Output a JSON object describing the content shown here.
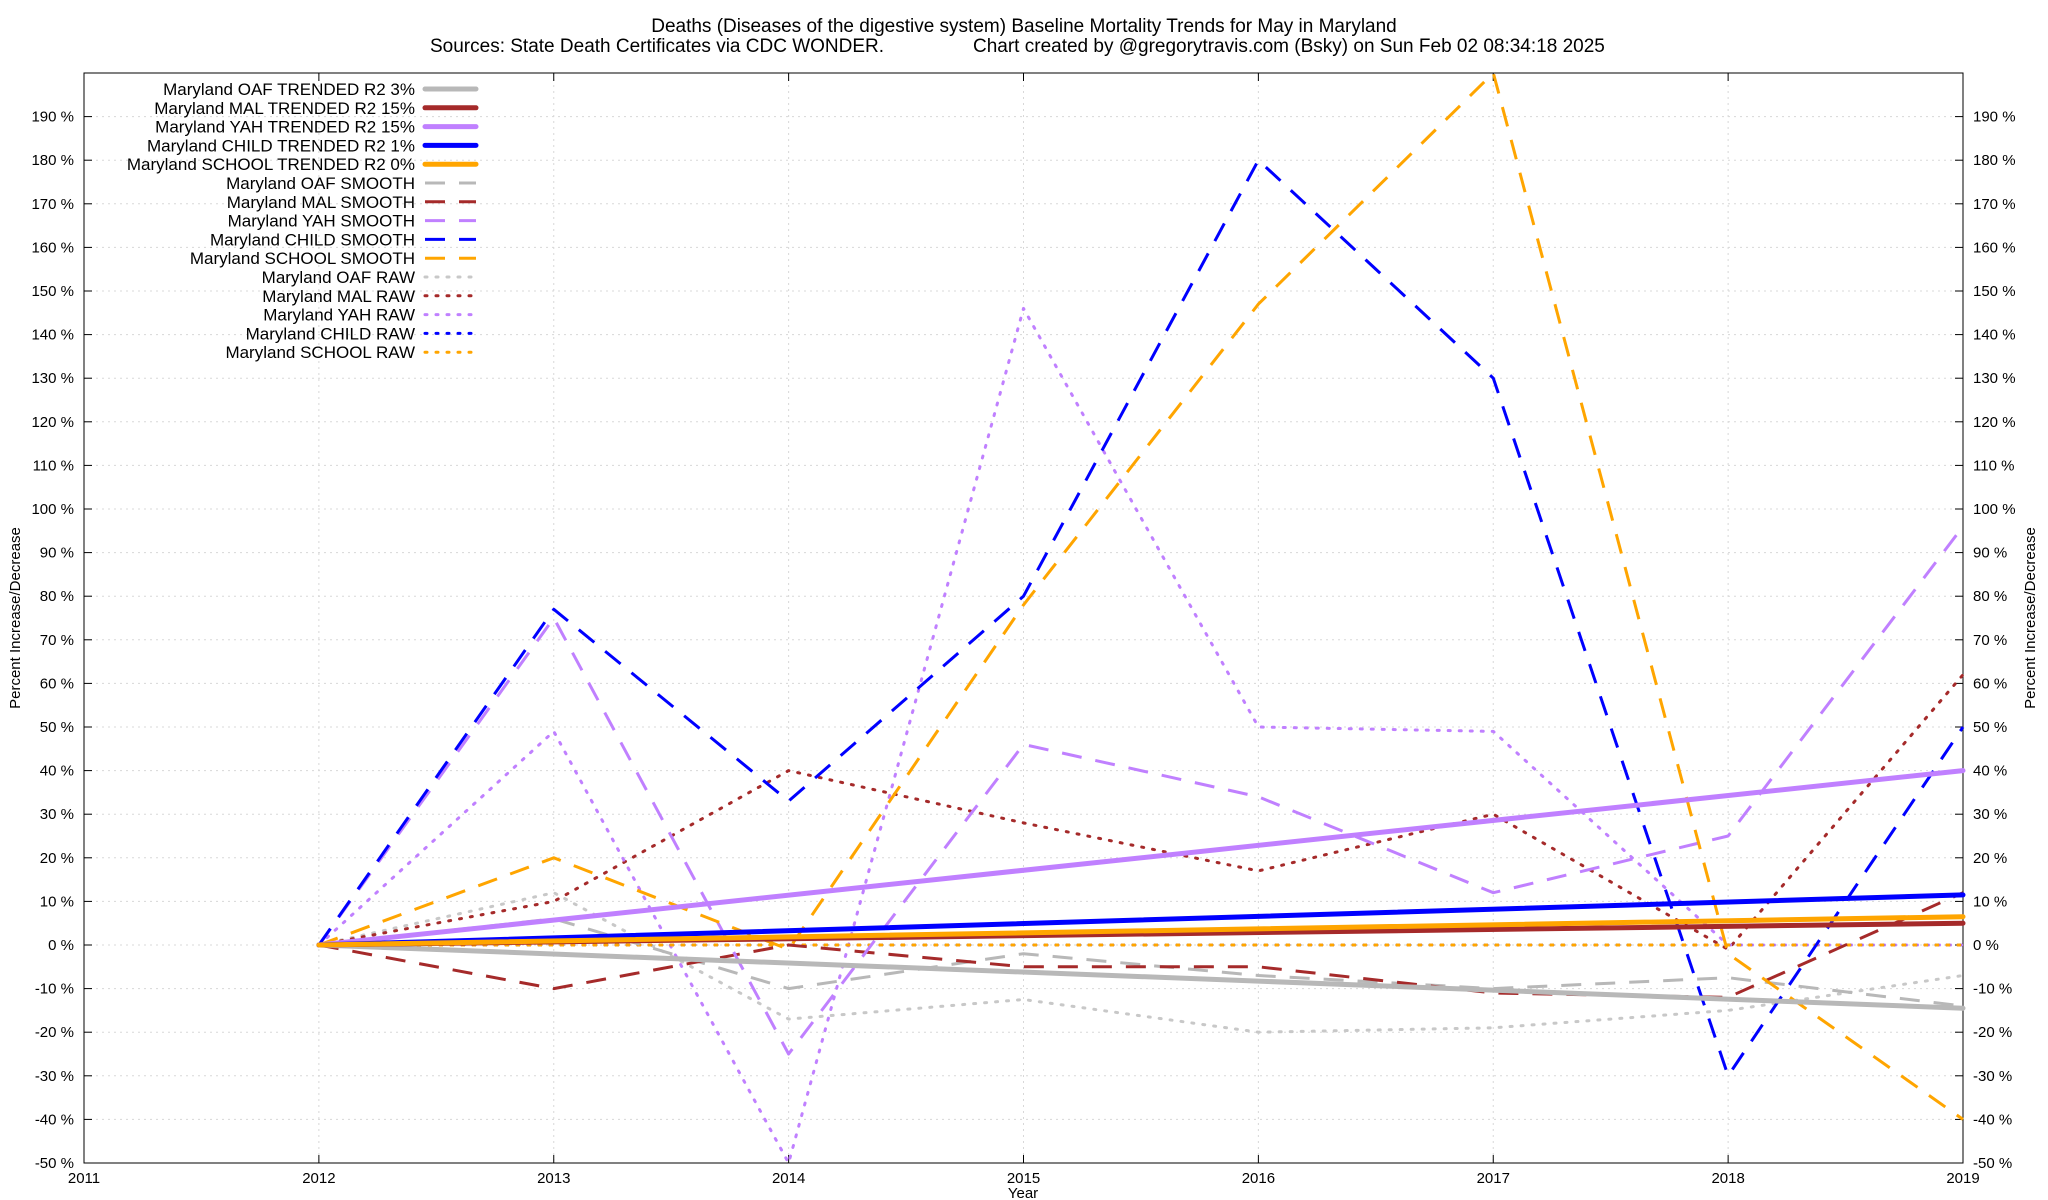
{
  "chart_data": {
    "type": "line",
    "title": "Deaths (Diseases of the digestive system)  Baseline Mortality Trends for May in Maryland",
    "subtitle_left": "Sources: State Death Certificates via CDC WONDER.",
    "subtitle_right": "Chart created by @gregorytravis.com (Bsky) on Sun Feb 02 08:34:18 2025",
    "xlabel": "Year",
    "ylabel_left": "Percent Increase/Decrease",
    "ylabel_right": "Percent Increase/Decrease",
    "xlim": [
      2011,
      2019
    ],
    "ylim": [
      -50,
      200
    ],
    "x_ticks": [
      "2011",
      "2012",
      "2013",
      "2014",
      "2015",
      "2016",
      "2017",
      "2018",
      "2019"
    ],
    "y_ticks": [
      "-50 %",
      "-40 %",
      "-30 %",
      "-20 %",
      "-10 %",
      "0 %",
      "10 %",
      "20 %",
      "30 %",
      "40 %",
      "50 %",
      "60 %",
      "70 %",
      "80 %",
      "90 %",
      "100 %",
      "110 %",
      "120 %",
      "130 %",
      "140 %",
      "150 %",
      "160 %",
      "170 %",
      "180 %",
      "190 %"
    ],
    "grid": true,
    "legend_position": "top-left",
    "series": [
      {
        "name": "Maryland OAF TRENDED R2  3%",
        "style": "solid",
        "color": "#b8b8b8",
        "x": [
          2012,
          2019
        ],
        "y": [
          0,
          -14.5
        ]
      },
      {
        "name": "Maryland MAL TRENDED R2  15%",
        "style": "solid",
        "color": "#a52a2a",
        "x": [
          2012,
          2019
        ],
        "y": [
          0,
          5
        ]
      },
      {
        "name": "Maryland YAH TRENDED R2  15%",
        "style": "solid",
        "color": "#c080ff",
        "x": [
          2012,
          2019
        ],
        "y": [
          0,
          40
        ]
      },
      {
        "name": "Maryland CHILD TRENDED R2  1%",
        "style": "solid",
        "color": "#0000ff",
        "x": [
          2012,
          2019
        ],
        "y": [
          0,
          11.5
        ]
      },
      {
        "name": "Maryland SCHOOL TRENDED R2  0%",
        "style": "solid",
        "color": "#ffa500",
        "x": [
          2012,
          2019
        ],
        "y": [
          0,
          6.5
        ]
      },
      {
        "name": "Maryland OAF SMOOTH",
        "style": "dashed",
        "color": "#b8b8b8",
        "x": [
          2012,
          2013,
          2014,
          2015,
          2016,
          2017,
          2018,
          2019
        ],
        "y": [
          0,
          6,
          -10,
          -2,
          -7,
          -10,
          -7.5,
          -14
        ]
      },
      {
        "name": "Maryland MAL SMOOTH",
        "style": "dashed",
        "color": "#a52a2a",
        "x": [
          2012,
          2013,
          2014,
          2015,
          2016,
          2017,
          2018,
          2019
        ],
        "y": [
          0,
          -10,
          0,
          -5,
          -5,
          -11,
          -12,
          12
        ]
      },
      {
        "name": "Maryland YAH SMOOTH",
        "style": "dashed",
        "color": "#c080ff",
        "x": [
          2012,
          2013,
          2014,
          2015,
          2016,
          2017,
          2018,
          2019
        ],
        "y": [
          0,
          75,
          -25,
          46,
          34,
          12,
          25,
          96
        ]
      },
      {
        "name": "Maryland CHILD SMOOTH",
        "style": "dashed",
        "color": "#0000ff",
        "x": [
          2012,
          2013,
          2014,
          2015,
          2016,
          2017,
          2018,
          2019
        ],
        "y": [
          0,
          77,
          33,
          80,
          180,
          130,
          -30,
          50
        ]
      },
      {
        "name": "Maryland SCHOOL SMOOTH",
        "style": "dashed",
        "color": "#ffa500",
        "x": [
          2012,
          2013,
          2014,
          2015,
          2016,
          2017,
          2018,
          2019
        ],
        "y": [
          0,
          20,
          -1,
          78,
          147,
          200,
          -2,
          -40
        ]
      },
      {
        "name": "Maryland OAF RAW",
        "style": "dotted",
        "color": "#c8c8c8",
        "x": [
          2012,
          2013,
          2014,
          2015,
          2016,
          2017,
          2018,
          2019
        ],
        "y": [
          0,
          12,
          -17,
          -12.5,
          -20,
          -19,
          -15,
          -7
        ]
      },
      {
        "name": "Maryland MAL RAW",
        "style": "dotted",
        "color": "#a52a2a",
        "x": [
          2012,
          2013,
          2014,
          2015,
          2016,
          2017,
          2018,
          2019
        ],
        "y": [
          0,
          10,
          40,
          28,
          17,
          30,
          -1,
          62
        ]
      },
      {
        "name": "Maryland YAH RAW",
        "style": "dotted",
        "color": "#c080ff",
        "x": [
          2012,
          2013,
          2014,
          2015,
          2016,
          2017,
          2018,
          2019
        ],
        "y": [
          0,
          49,
          -50,
          146,
          50,
          49,
          0,
          0
        ]
      },
      {
        "name": "Maryland CHILD RAW",
        "style": "dotted",
        "color": "#0000ff",
        "x": [
          2012,
          2013,
          2014,
          2015,
          2016,
          2017,
          2018,
          2019
        ],
        "y": [
          0,
          0,
          0,
          0,
          0,
          0,
          0,
          0
        ]
      },
      {
        "name": "Maryland SCHOOL RAW",
        "style": "dotted",
        "color": "#ffa500",
        "x": [
          2012,
          2013,
          2014,
          2015,
          2016,
          2017,
          2018,
          2019
        ],
        "y": [
          0,
          0,
          0,
          0,
          0,
          0,
          0,
          0
        ]
      }
    ]
  }
}
